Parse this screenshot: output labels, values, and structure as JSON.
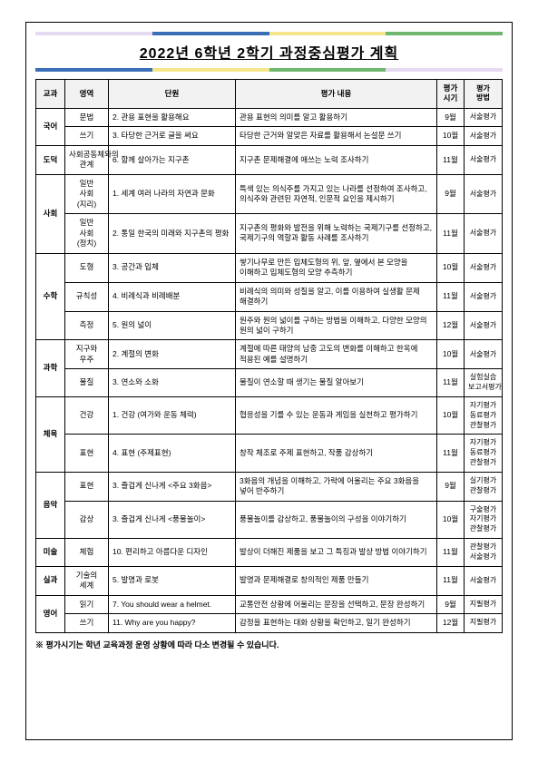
{
  "title": "2022년 6학년 2학기 과정중심평가 계획",
  "title_bar_colors": [
    "#e6d9f2",
    "#3a6fb7",
    "#f5e68c",
    "#6fb76f"
  ],
  "headers": {
    "subject": "교과",
    "area": "영역",
    "unit": "단원",
    "desc": "평가 내용",
    "time": "평가\n시기",
    "method": "평가\n방법"
  },
  "rows": [
    {
      "subject": "국어",
      "subjectRowspan": 2,
      "area": "문법",
      "unit": "2. 관용 표현을 활용해요",
      "desc": "관용 표현의 의미를 알고 활용하기",
      "time": "9월",
      "method": "서술평가"
    },
    {
      "area": "쓰기",
      "unit": "3. 타당한 근거로 글을 써요",
      "desc": "타당한 근거와 알맞은 자료를 활용해서 논설문 쓰기",
      "time": "10월",
      "method": "서술평가"
    },
    {
      "subject": "도덕",
      "subjectRowspan": 1,
      "area": "사회공동체와의 관계",
      "unit": "6. 함께 살아가는 지구촌",
      "desc": "지구촌 문제해결에 애쓰는 노력 조사하기",
      "time": "11월",
      "method": "서술평가"
    },
    {
      "subject": "사회",
      "subjectRowspan": 2,
      "area": "일반\n사회\n(지리)",
      "unit": "1. 세계 여러 나라의 자연과 문화",
      "desc": "특색 있는 의식주를 가지고 있는 나라를 선정하여 조사하고, 의식주와 관련된 자연적, 인문적 요인을 제시하기",
      "time": "9월",
      "method": "서술평가"
    },
    {
      "area": "일반\n사회\n(정치)",
      "unit": "2. 통일 한국의 미래와 지구촌의 평화",
      "desc": "지구촌의 평화와 발전을 위해 노력하는 국제기구를 선정하고, 국제기구의 역할과 활동 사례를 조사하기",
      "time": "11월",
      "method": "서술평가"
    },
    {
      "subject": "수학",
      "subjectRowspan": 3,
      "area": "도형",
      "unit": "3. 공간과 입체",
      "desc": "쌓기나무로 만든 입체도형의 위, 앞, 옆에서 본 모양을 이해하고 입체도형의 모양 추측하기",
      "time": "10월",
      "method": "서술평가"
    },
    {
      "area": "규칙성",
      "unit": "4. 비례식과 비례배분",
      "desc": "비례식의 의미와 성질을 알고, 이를 이용하여 실생활 문제 해결하기",
      "time": "11월",
      "method": "서술평가"
    },
    {
      "area": "측정",
      "unit": "5. 원의 넓이",
      "desc": "원주와 원의 넓이를 구하는 방법을 이해하고, 다양한 모양의 원의 넓이 구하기",
      "time": "12월",
      "method": "서술평가"
    },
    {
      "subject": "과학",
      "subjectRowspan": 2,
      "area": "지구와\n우주",
      "unit": "2. 계절의 변화",
      "desc": "계절에 따른 태양의 남중 고도의 변화를 이해하고 한옥에 적용된 예를 설명하기",
      "time": "10월",
      "method": "서술평가"
    },
    {
      "area": "물질",
      "unit": "3. 연소와 소화",
      "desc": "물질이 연소할 때 생기는 물질 알아보기",
      "time": "11월",
      "method": "실험실습\n보고서평가"
    },
    {
      "subject": "체육",
      "subjectRowspan": 2,
      "area": "건강",
      "unit": "1. 건강 (여가와 운동 체력)",
      "desc": "협응성을 기를 수 있는 운동과 게임을 실천하고 평가하기",
      "time": "10월",
      "method": "자기평가\n동료평가\n관찰평가"
    },
    {
      "area": "표현",
      "unit": "4. 표현 (주제표현)",
      "desc": "창작 체조로 주제 표현하고, 작품 감상하기",
      "time": "11월",
      "method": "자기평가\n동료평가\n관찰평가"
    },
    {
      "subject": "음악",
      "subjectRowspan": 2,
      "area": "표현",
      "unit": "3. 즐겁게 신나게 <주요 3화음>",
      "desc": "3화음의 개념을 이해하고, 가락에 어울리는 주요 3화음을 넣어 반주하기",
      "time": "9월",
      "method": "실기평가\n관찰평가"
    },
    {
      "area": "감상",
      "unit": "3. 즐겁게 신나게 <풍물놀이>",
      "desc": "풍물놀이를 감상하고, 풍물놀이의 구성을 이야기하기",
      "time": "10월",
      "method": "구술평가\n자기평가\n관찰평가"
    },
    {
      "subject": "미술",
      "subjectRowspan": 1,
      "area": "체험",
      "unit": "10. 편리하고 아름다운 디자인",
      "desc": "발상이 더해진 제품을 보고 그 특징과 발상 방법 이야기하기",
      "time": "11월",
      "method": "관찰평가\n서술평가"
    },
    {
      "subject": "실과",
      "subjectRowspan": 1,
      "area": "기술의\n세계",
      "unit": "5. 발명과 로봇",
      "desc": "발명과 문제해결로 창의적인 제품 만들기",
      "time": "11월",
      "method": "서술평가"
    },
    {
      "subject": "영어",
      "subjectRowspan": 2,
      "area": "읽기",
      "unit": "7. You should wear a helmet.",
      "desc": "교통안전 상황에 어울리는 문장을 선택하고, 문장 완성하기",
      "time": "9월",
      "method": "지필평가"
    },
    {
      "area": "쓰기",
      "unit": "11. Why are you happy?",
      "desc": "감정을 표현하는 대화 상황을 확인하고, 일기 완성하기",
      "time": "12월",
      "method": "지필평가"
    }
  ],
  "footnote": "※ 평가시기는 학년 교육과정 운영 상황에 따라 다소 변경될 수 있습니다."
}
